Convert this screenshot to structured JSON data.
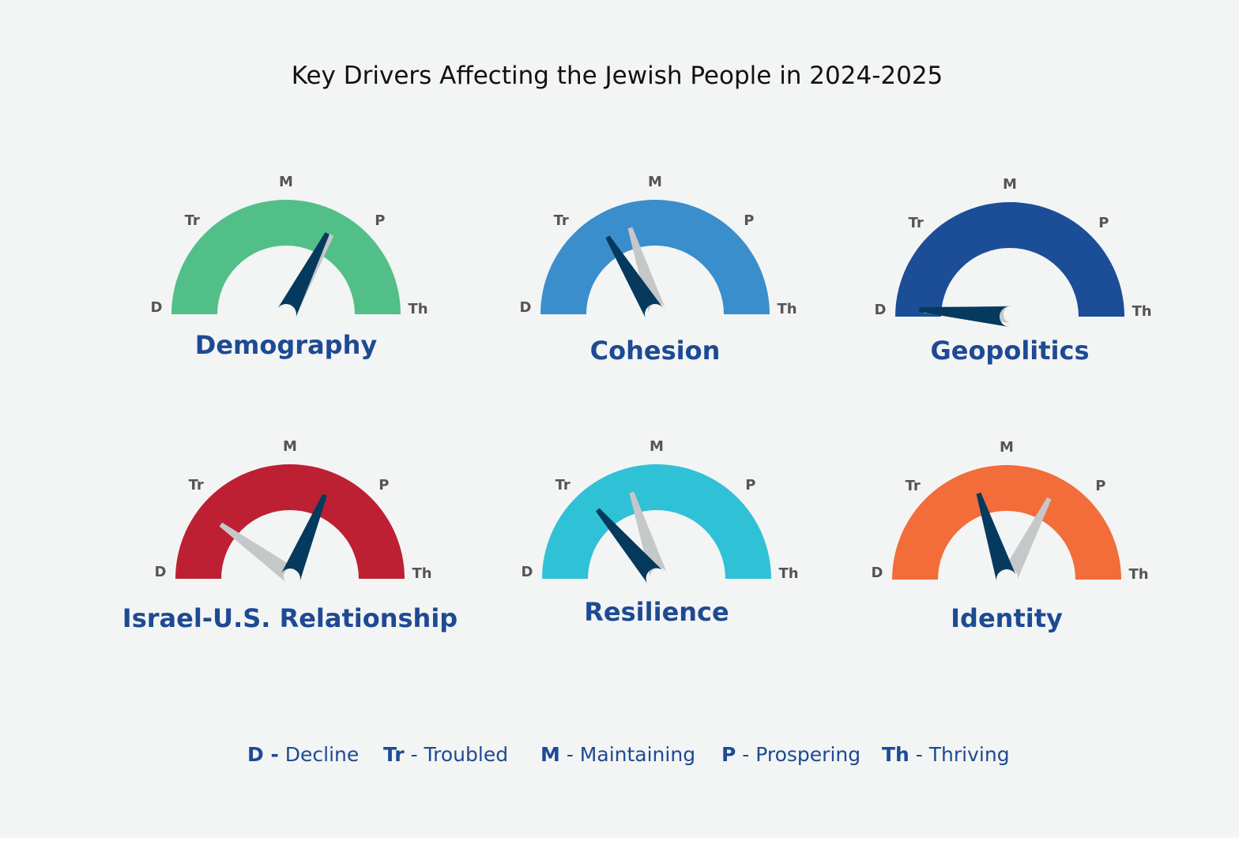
{
  "title": "Key Drivers Affecting the Jewish People in 2024-2025",
  "colors": {
    "background": "#f3f4f4",
    "title_text": "#111111",
    "label_text": "#1d4a93",
    "tick_text": "#555555",
    "current_needle": "#053a5e",
    "previous_needle": "#c6c7c9"
  },
  "chart_data": {
    "type": "gauge",
    "scale_ticks": [
      "D",
      "Tr",
      "M",
      "P",
      "Th"
    ],
    "scale_range": [
      0,
      4
    ],
    "gauges": [
      {
        "label": "Demography",
        "color": "#52bf88",
        "current": 2.6,
        "previous": 2.65
      },
      {
        "label": "Cohesion",
        "color": "#3a8ecc",
        "current": 1.3,
        "previous": 1.6
      },
      {
        "label": "Geopolitics",
        "color": "#1c4d97",
        "current": 0.1,
        "previous": 0.05
      },
      {
        "label": "Israel-U.S. Relationship",
        "color": "#be2033",
        "current": 2.5,
        "previous": 0.8
      },
      {
        "label": "Resilience",
        "color": "#2fc1d6",
        "current": 1.1,
        "previous": 1.6
      },
      {
        "label": "Identity",
        "color": "#f26d3a",
        "current": 1.6,
        "previous": 2.6
      }
    ]
  },
  "legend": [
    {
      "code": "D -",
      "text": " Decline"
    },
    {
      "code": "Tr",
      "text": " - Troubled"
    },
    {
      "code": "M",
      "text": " - Maintaining"
    },
    {
      "code": "P",
      "text": " - Prospering"
    },
    {
      "code": "Th",
      "text": " - Thriving"
    }
  ]
}
